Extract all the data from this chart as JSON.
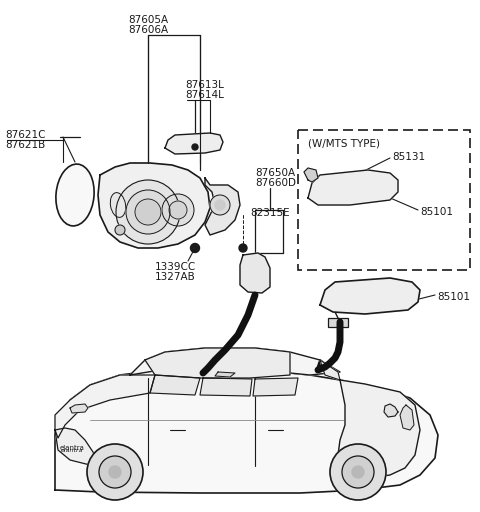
{
  "background_color": "#ffffff",
  "line_color": "#1a1a1a",
  "fig_width": 4.8,
  "fig_height": 5.12,
  "dpi": 100,
  "labels": {
    "87605A_87606A": "87605A\n87606A",
    "87613L_87614L": "87613L\n87614L",
    "87621C_87621B": "87621C\n87621B",
    "87650A_87660D": "87650A\n87660D",
    "82315E": "82315E",
    "1339CC_1327AB": "1339CC\n1327AB",
    "85131": "85131",
    "85101_mts": "85101",
    "85101_main": "85101",
    "wmts": "(W/MTS TYPE)"
  }
}
